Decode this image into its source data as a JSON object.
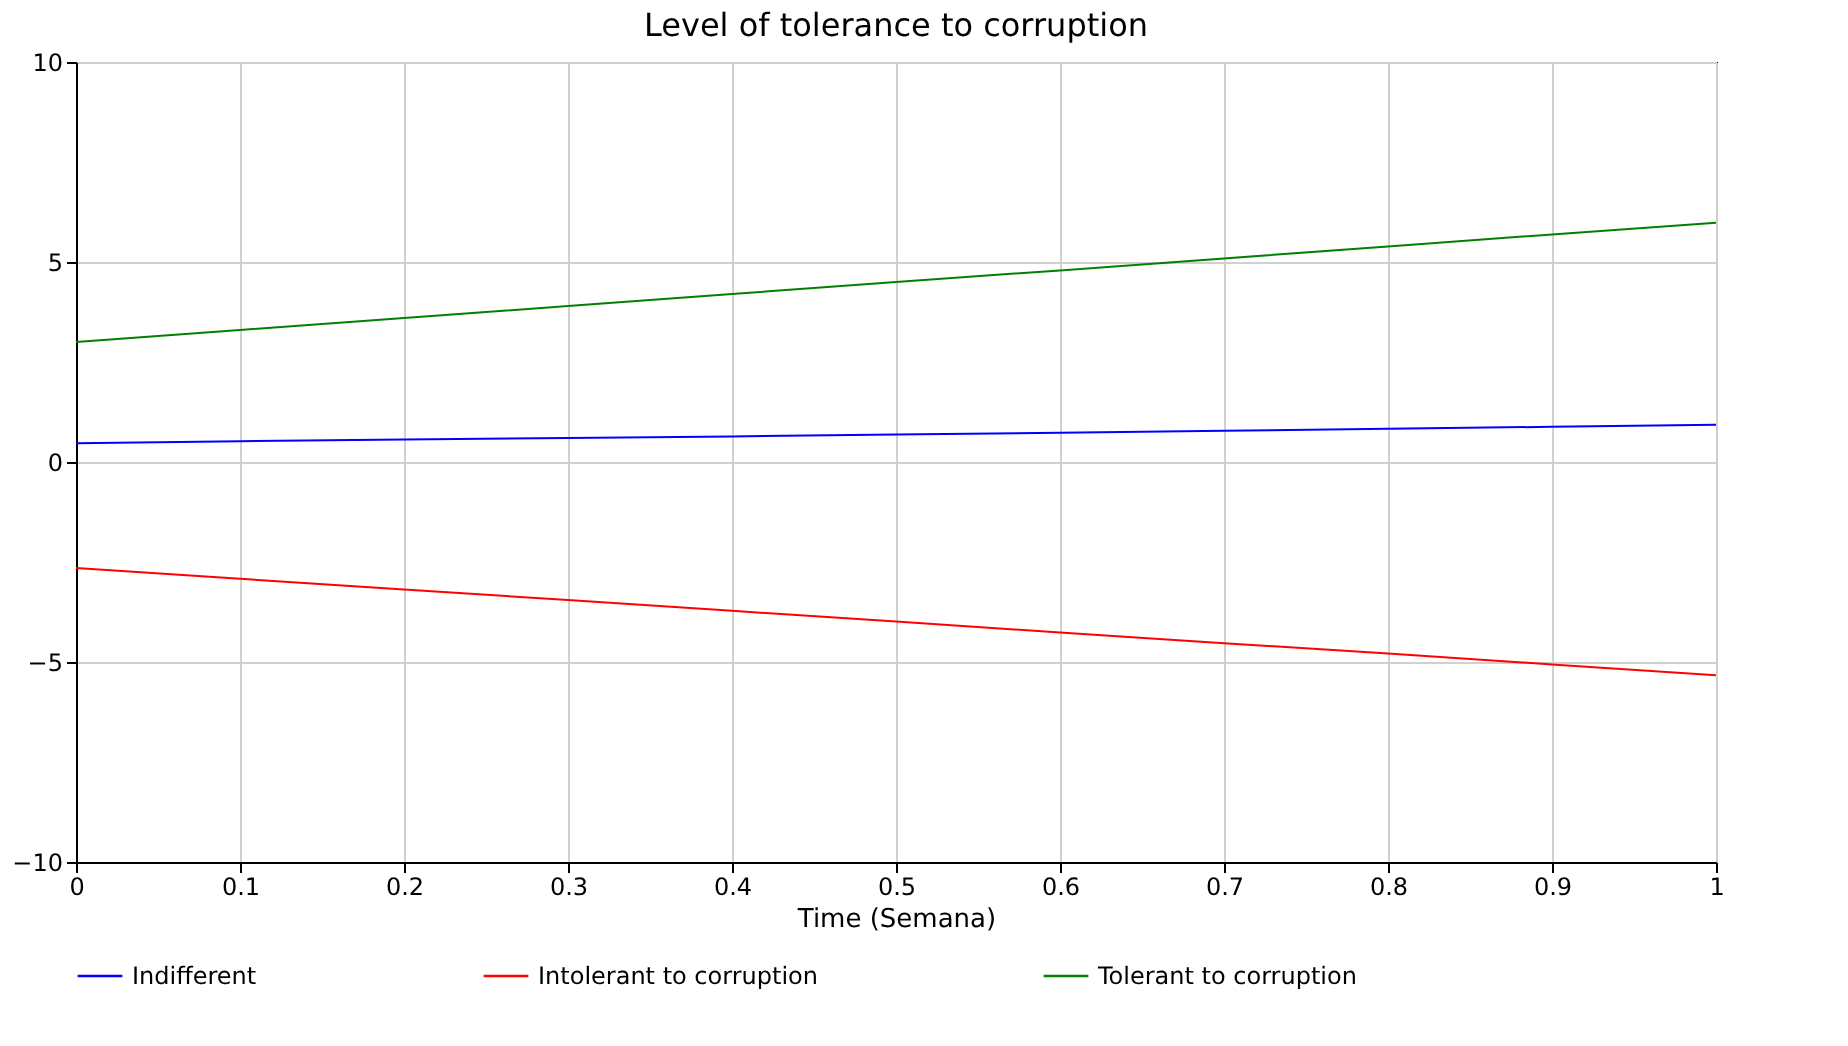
{
  "chart_data": {
    "type": "line",
    "title": "Level of tolerance to corruption",
    "xlabel": "Time (Semana)",
    "x": [
      0,
      0.1,
      0.2,
      0.3,
      0.4,
      0.5,
      0.6,
      0.7,
      0.8,
      0.9,
      1
    ],
    "series": [
      {
        "name": "Indifferent",
        "color": "#0000ff",
        "values": [
          0.47,
          0.52,
          0.56,
          0.6,
          0.64,
          0.69,
          0.73,
          0.78,
          0.83,
          0.88,
          0.93
        ]
      },
      {
        "name": "Intolerant to corruption",
        "color": "#ff0000",
        "values": [
          -2.65,
          -2.92,
          -3.19,
          -3.45,
          -3.72,
          -3.99,
          -4.26,
          -4.53,
          -4.79,
          -5.06,
          -5.33
        ]
      },
      {
        "name": "Tolerant to corruption",
        "color": "#008000",
        "values": [
          3.0,
          3.3,
          3.6,
          3.9,
          4.2,
          4.5,
          4.79,
          5.09,
          5.39,
          5.69,
          5.98
        ]
      }
    ],
    "xlim": [
      0,
      1
    ],
    "xticks": [
      0,
      0.1,
      0.2,
      0.3,
      0.4,
      0.5,
      0.6,
      0.7,
      0.8,
      0.9,
      1
    ],
    "ylim": [
      -10,
      10
    ],
    "yticks": [
      -10,
      -5,
      0,
      5,
      10
    ],
    "grid": true,
    "legend": "bottom",
    "marker": "none",
    "line_style": "solid"
  }
}
